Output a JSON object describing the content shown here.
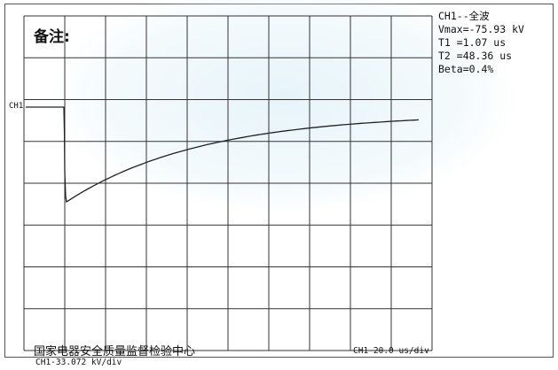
{
  "remark_label": "备注:",
  "channel_info": {
    "title": "CH1--全波",
    "vmax": "Vmax=-75.93 kV",
    "t1": "T1 =1.07 us",
    "t2": "T2 =48.36 us",
    "beta": "Beta=0.4%"
  },
  "channel_marker": "CH1",
  "organization": "国家电器安全质量监督检验中心",
  "horizontal_scale": "CH1-20.0 us/div",
  "vertical_scale": "CH1-33.072 kV/div",
  "colors": {
    "trace": "#222222",
    "grid": "#333333",
    "frame": "#555555"
  }
}
